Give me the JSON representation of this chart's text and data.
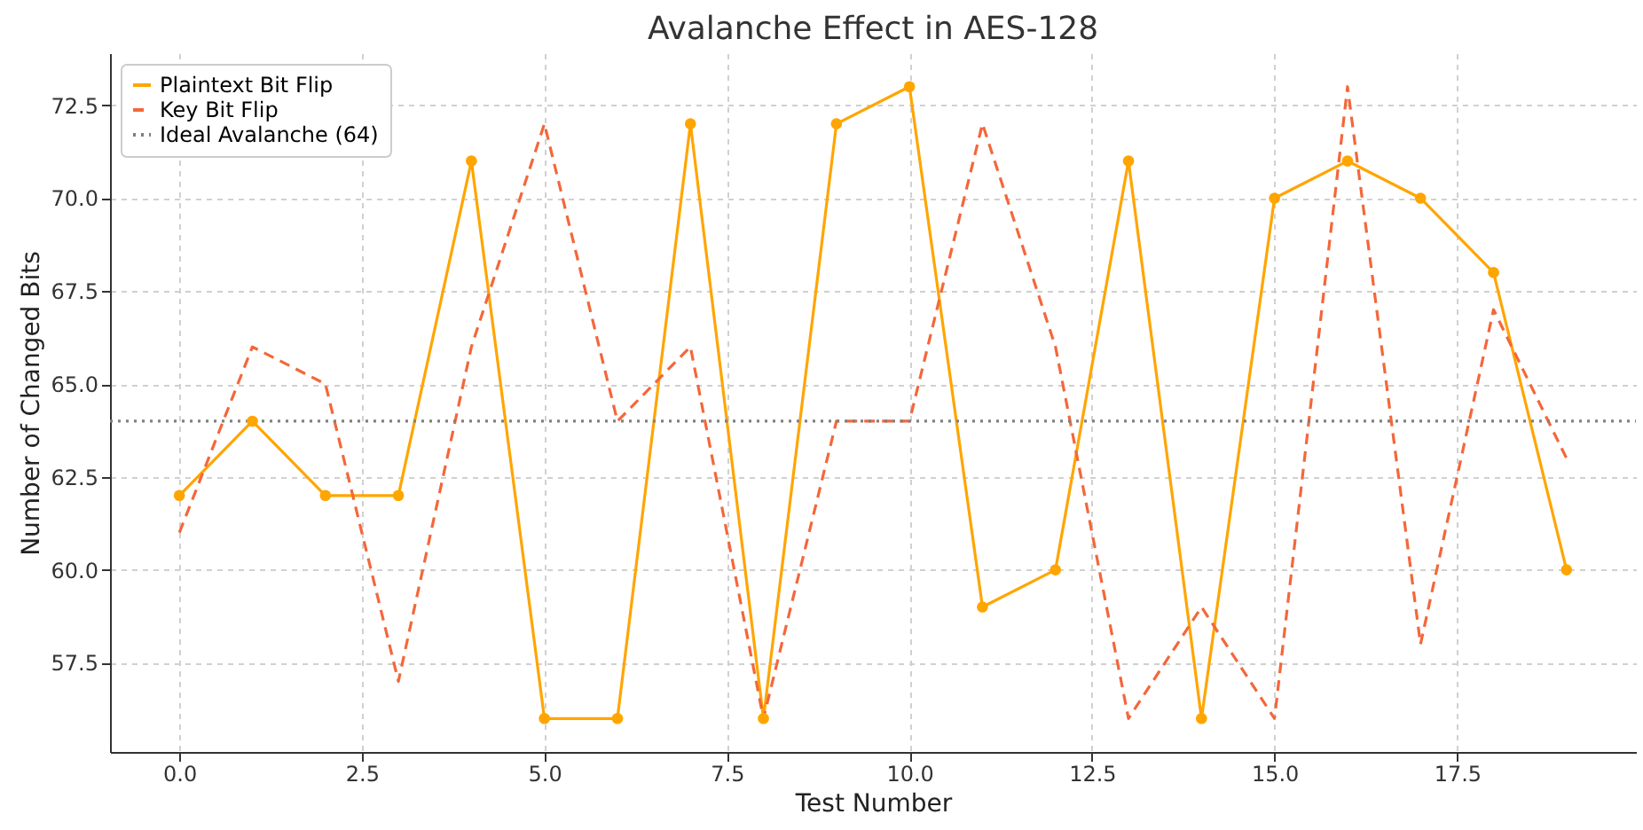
{
  "chart_data": {
    "type": "line",
    "title": "Avalanche Effect in AES-128",
    "xlabel": "Test Number",
    "ylabel": "Number of Changed Bits",
    "x": [
      0,
      1,
      2,
      3,
      4,
      5,
      6,
      7,
      8,
      9,
      10,
      11,
      12,
      13,
      14,
      15,
      16,
      17,
      18,
      19
    ],
    "series": [
      {
        "name": "Plaintext Bit Flip",
        "color": "#ffa500",
        "marker": "circle",
        "line_style": "solid",
        "values": [
          62,
          64,
          62,
          62,
          71,
          56,
          56,
          72,
          56,
          72,
          73,
          59,
          60,
          71,
          56,
          70,
          71,
          70,
          68,
          60
        ]
      },
      {
        "name": "Key Bit Flip",
        "color": "#f4673a",
        "marker": "none",
        "line_style": "dashed",
        "values": [
          61,
          66,
          65,
          57,
          66,
          72,
          64,
          66,
          56,
          64,
          64,
          72,
          66,
          56,
          59,
          56,
          73,
          58,
          67,
          63
        ]
      }
    ],
    "ref_lines": [
      {
        "axis": "y",
        "value": 64,
        "label": "Ideal Avalanche (64)",
        "color": "#808080",
        "line_style": "dotted"
      }
    ],
    "xlim": [
      -0.95,
      19.95
    ],
    "xticks": [
      {
        "value": 0,
        "label": "0.0"
      },
      2.5,
      {
        "value": 5,
        "label": "5.0"
      },
      7.5,
      {
        "value": 10,
        "label": "10.0"
      },
      12.5,
      {
        "value": 15,
        "label": "15.0"
      },
      17.5
    ],
    "ylim": [
      55.1,
      73.9
    ],
    "yticks": [
      57.5,
      {
        "value": 60,
        "label": "60.0"
      },
      62.5,
      {
        "value": 65,
        "label": "65.0"
      },
      67.5,
      {
        "value": 70,
        "label": "70.0"
      },
      72.5
    ],
    "grid": true,
    "legend": "top left"
  }
}
